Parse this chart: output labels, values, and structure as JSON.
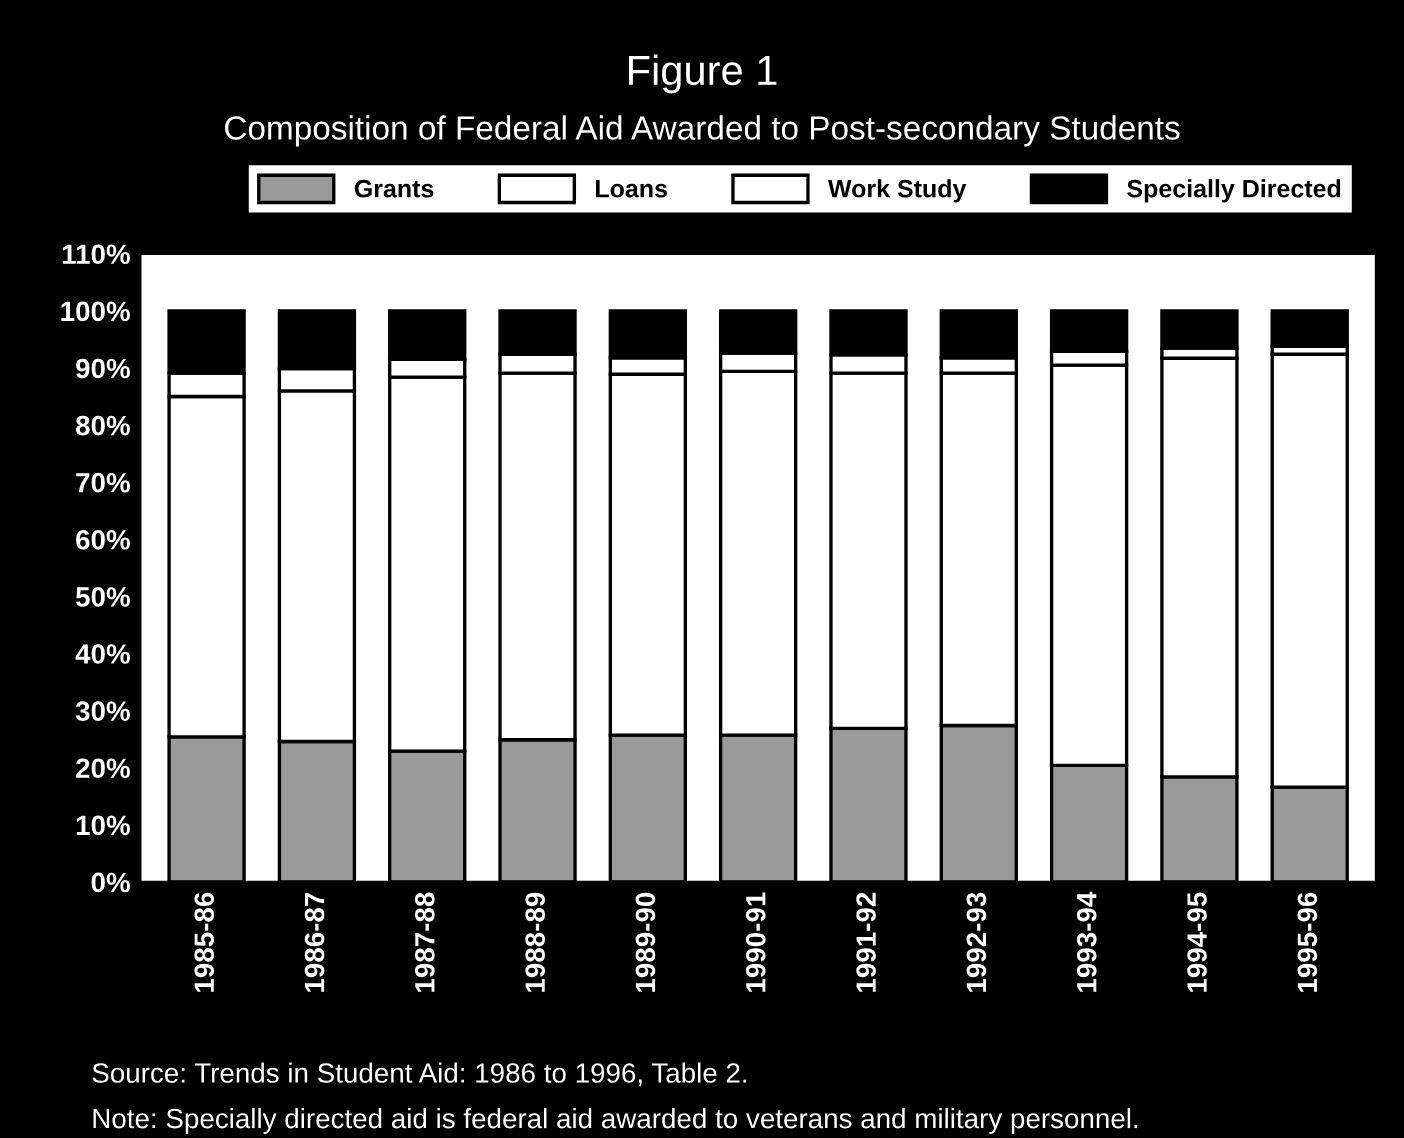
{
  "chart_data": {
    "type": "bar",
    "stacked": true,
    "title": "Figure 1",
    "subtitle": "Composition of Federal Aid Awarded to Post-secondary Students",
    "categories": [
      "1985-86",
      "1986-87",
      "1987-88",
      "1988-89",
      "1989-90",
      "1990-91",
      "1991-92",
      "1992-93",
      "1993-94",
      "1994-95",
      "1995-96"
    ],
    "series": [
      {
        "name": "Grants",
        "color": "#9a9a9a",
        "values": [
          25.4,
          24.6,
          22.9,
          24.9,
          25.7,
          25.7,
          26.9,
          27.4,
          20.4,
          18.4,
          16.6
        ]
      },
      {
        "name": "Loans",
        "color": "#ffffff",
        "values": [
          59.6,
          61.4,
          65.5,
          64.2,
          63.2,
          63.7,
          62.2,
          61.7,
          70.1,
          73.3,
          75.8
        ]
      },
      {
        "name": "Work Study",
        "color": "#ffffff",
        "values": [
          4.1,
          3.9,
          3.1,
          3.3,
          2.9,
          3.2,
          3.2,
          2.7,
          2.4,
          1.8,
          1.4
        ]
      },
      {
        "name": "Specially Directed",
        "color": "#000000",
        "values": [
          10.9,
          10.1,
          8.5,
          7.6,
          8.2,
          7.4,
          7.7,
          8.2,
          7.1,
          6.5,
          6.2
        ]
      }
    ],
    "ylim": [
      0,
      110
    ],
    "yticks": [
      {
        "value": 0,
        "label": "0%"
      },
      {
        "value": 10,
        "label": "10%"
      },
      {
        "value": 20,
        "label": "20%"
      },
      {
        "value": 30,
        "label": "30%"
      },
      {
        "value": 40,
        "label": "40%"
      },
      {
        "value": 50,
        "label": "50%"
      },
      {
        "value": 60,
        "label": "60%"
      },
      {
        "value": 70,
        "label": "70%"
      },
      {
        "value": 80,
        "label": "80%"
      },
      {
        "value": 90,
        "label": "90%"
      },
      {
        "value": 100,
        "label": "100%"
      },
      {
        "value": 110,
        "label": "110%"
      }
    ],
    "grid": false,
    "legend": "top",
    "annotations": [
      "Source: Trends in Student Aid: 1986 to 1996, Table 2.",
      "Note: Specially directed aid is federal aid awarded to veterans and military personnel."
    ]
  }
}
